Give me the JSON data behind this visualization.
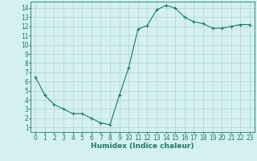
{
  "x": [
    0,
    1,
    2,
    3,
    4,
    5,
    6,
    7,
    8,
    9,
    10,
    11,
    12,
    13,
    14,
    15,
    16,
    17,
    18,
    19,
    20,
    21,
    22,
    23
  ],
  "y": [
    6.5,
    4.5,
    3.5,
    3.0,
    2.5,
    2.5,
    2.0,
    1.5,
    1.3,
    4.5,
    7.5,
    11.7,
    12.1,
    13.8,
    14.3,
    14.0,
    13.0,
    12.5,
    12.3,
    11.8,
    11.8,
    12.0,
    12.2,
    12.2
  ],
  "line_color": "#1a7a6e",
  "marker": "+",
  "marker_size": 3,
  "bg_color": "#d4f0f0",
  "grid_color": "#b8d8d8",
  "tick_color": "#1a7a6e",
  "xlabel": "Humidex (Indice chaleur)",
  "xlim": [
    -0.5,
    23.5
  ],
  "ylim": [
    0.5,
    14.7
  ],
  "yticks": [
    1,
    2,
    3,
    4,
    5,
    6,
    7,
    8,
    9,
    10,
    11,
    12,
    13,
    14
  ],
  "xticks": [
    0,
    1,
    2,
    3,
    4,
    5,
    6,
    7,
    8,
    9,
    10,
    11,
    12,
    13,
    14,
    15,
    16,
    17,
    18,
    19,
    20,
    21,
    22,
    23
  ],
  "xlabel_fontsize": 6.5,
  "tick_fontsize": 5.5
}
